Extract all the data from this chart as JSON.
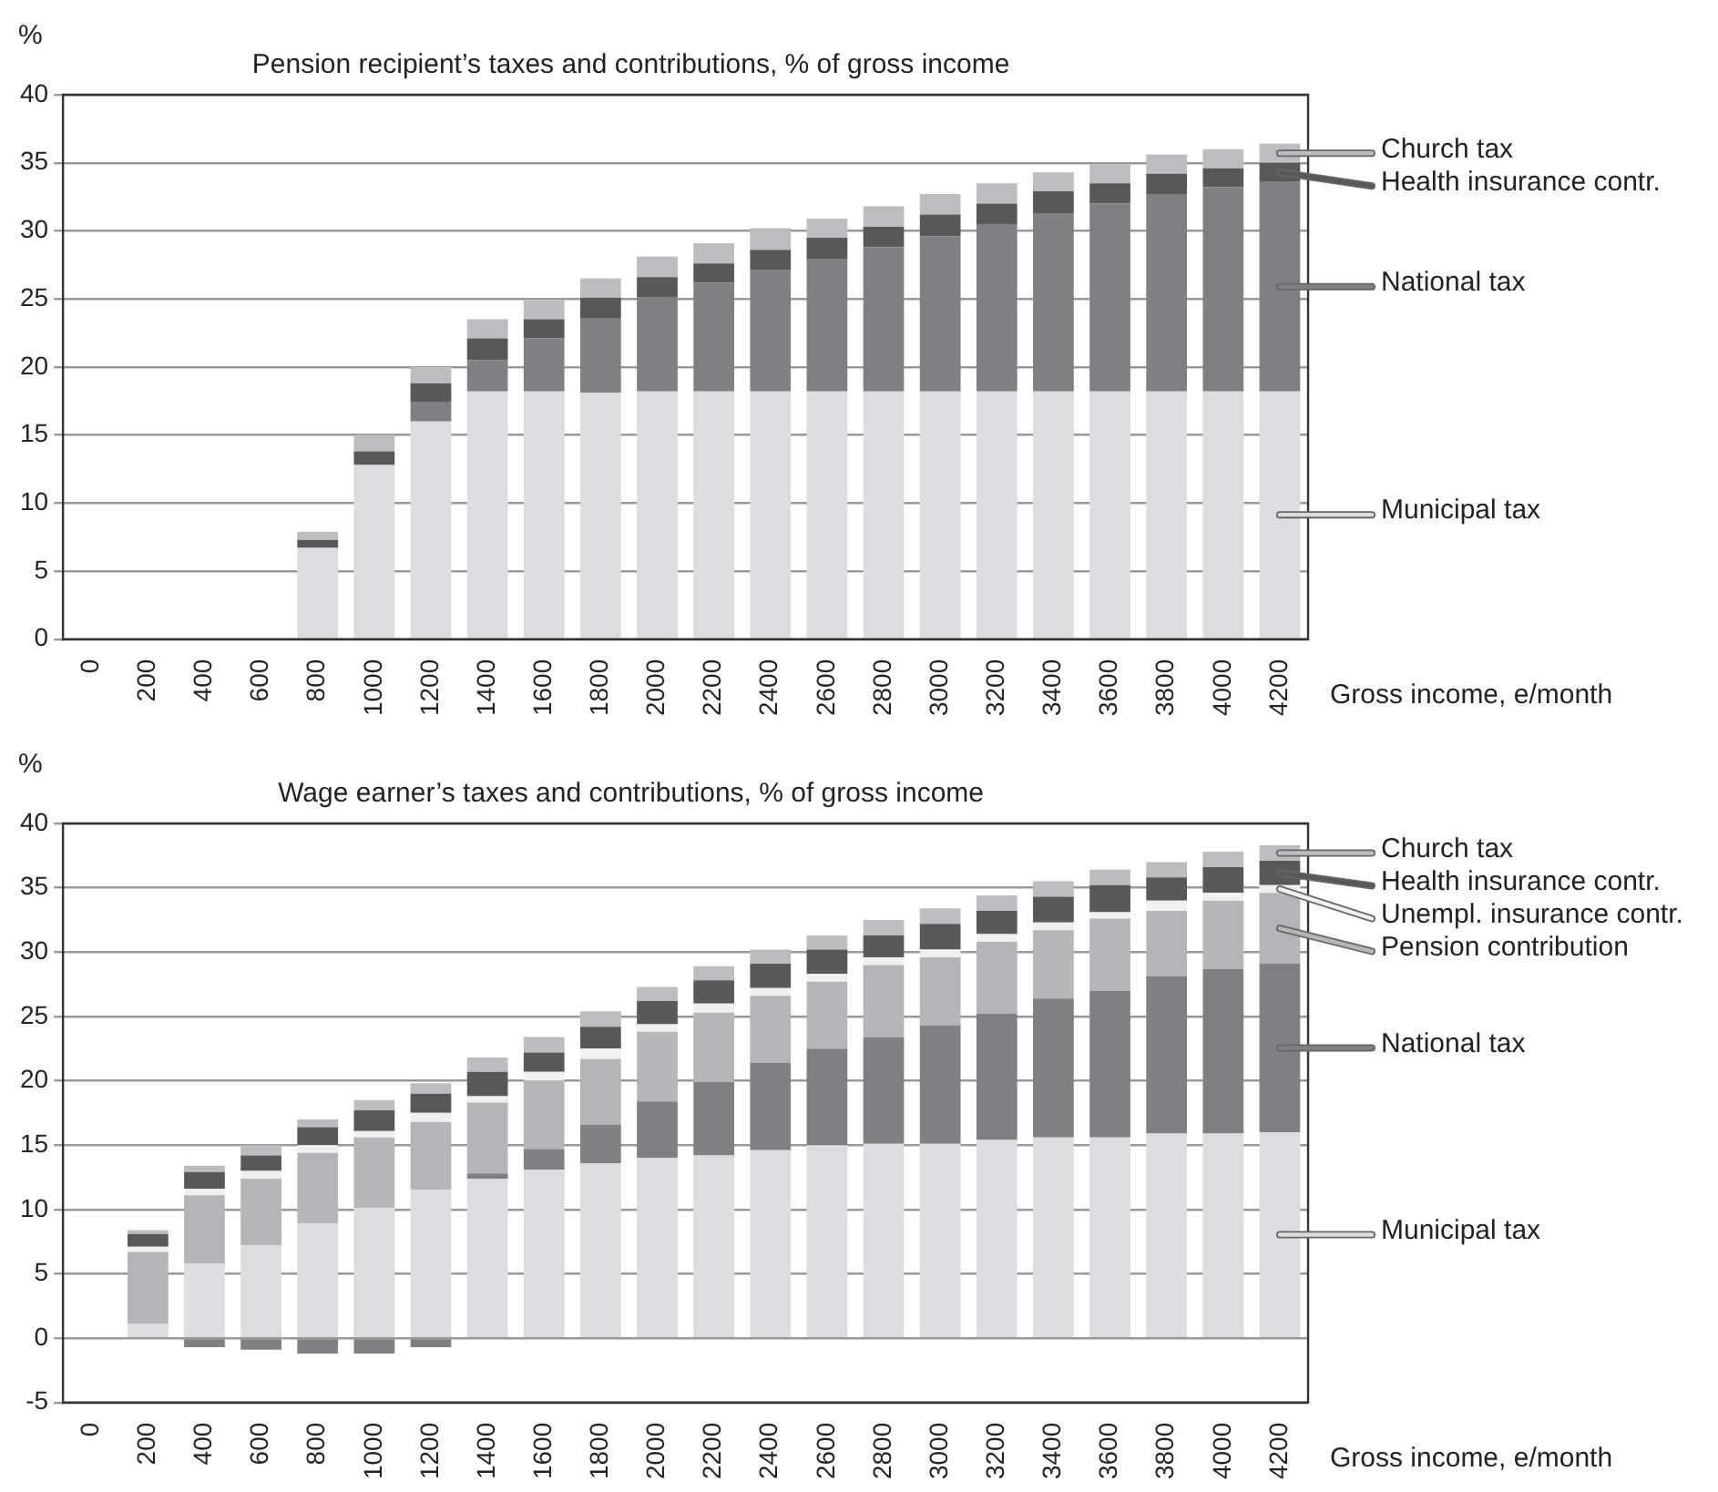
{
  "chart_data": [
    {
      "type": "bar",
      "title": "Pension recipient’s taxes and contributions, % of gross income",
      "ylabel": "%",
      "xlabel": "Gross income, e/month",
      "stacked": true,
      "grid": "y",
      "legend": "right",
      "categories": [
        "0",
        "200",
        "400",
        "600",
        "800",
        "1000",
        "1200",
        "1400",
        "1600",
        "1800",
        "2000",
        "2200",
        "2400",
        "2600",
        "2800",
        "3000",
        "3200",
        "3400",
        "3600",
        "3800",
        "4000",
        "4200"
      ],
      "ylim": [
        0,
        40
      ],
      "yticks": [
        0,
        5,
        10,
        15,
        20,
        25,
        30,
        35,
        40
      ],
      "series": [
        {
          "name": "Municipal tax",
          "color": "#dcdde0",
          "values": [
            null,
            0,
            0,
            0,
            6.7,
            12.8,
            16.0,
            18.2,
            18.2,
            18.1,
            18.2,
            18.2,
            18.2,
            18.2,
            18.2,
            18.2,
            18.2,
            18.2,
            18.2,
            18.2,
            18.2,
            18.2
          ]
        },
        {
          "name": "National tax",
          "color": "#808084",
          "values": [
            null,
            0,
            0,
            0,
            0,
            0,
            1.4,
            2.3,
            3.9,
            5.5,
            6.9,
            8.0,
            8.9,
            9.7,
            10.6,
            11.4,
            12.3,
            13.1,
            13.8,
            14.5,
            15.0,
            15.4
          ]
        },
        {
          "name": "Health insurance contr.",
          "color": "#57585a",
          "values": [
            null,
            0,
            0,
            0,
            0.6,
            1.0,
            1.4,
            1.6,
            1.4,
            1.5,
            1.5,
            1.4,
            1.5,
            1.6,
            1.5,
            1.6,
            1.5,
            1.6,
            1.5,
            1.5,
            1.4,
            1.4
          ]
        },
        {
          "name": "Church tax",
          "color": "#bcbdc0",
          "values": [
            null,
            0,
            0,
            0,
            0.6,
            1.2,
            1.2,
            1.4,
            1.4,
            1.4,
            1.5,
            1.5,
            1.6,
            1.4,
            1.5,
            1.5,
            1.5,
            1.4,
            1.4,
            1.4,
            1.4,
            1.4
          ]
        }
      ]
    },
    {
      "type": "bar",
      "title": "Wage earner’s taxes and contributions, % of gross income",
      "ylabel": "%",
      "xlabel": "Gross income, e/month",
      "stacked": true,
      "grid": "y",
      "legend": "right",
      "categories": [
        "0",
        "200",
        "400",
        "600",
        "800",
        "1000",
        "1200",
        "1400",
        "1600",
        "1800",
        "2000",
        "2200",
        "2400",
        "2600",
        "2800",
        "3000",
        "3200",
        "3400",
        "3600",
        "3800",
        "4000",
        "4200"
      ],
      "ylim": [
        -5,
        40
      ],
      "yticks": [
        -5,
        0,
        5,
        10,
        15,
        20,
        25,
        30,
        35,
        40
      ],
      "series": [
        {
          "name": "Municipal tax",
          "color": "#dcdde0",
          "values": [
            null,
            1.1,
            5.8,
            7.2,
            8.9,
            10.1,
            11.5,
            12.4,
            13.1,
            13.6,
            14.0,
            14.2,
            14.6,
            15.0,
            15.1,
            15.1,
            15.4,
            15.6,
            15.6,
            15.9,
            15.9,
            16.0
          ]
        },
        {
          "name": "National tax",
          "color": "#808084",
          "values": [
            null,
            0,
            -0.7,
            -0.9,
            -1.2,
            -1.2,
            -0.7,
            0.4,
            1.6,
            3.0,
            4.4,
            5.7,
            6.8,
            7.5,
            8.3,
            9.2,
            9.8,
            10.8,
            11.4,
            12.2,
            12.8,
            13.1
          ]
        },
        {
          "name": "Pension contribution",
          "color": "#b4b5b8",
          "values": [
            null,
            5.6,
            5.3,
            5.2,
            5.5,
            5.5,
            5.3,
            5.5,
            5.3,
            5.1,
            5.4,
            5.4,
            5.2,
            5.2,
            5.6,
            5.3,
            5.6,
            5.3,
            5.6,
            5.1,
            5.3,
            5.5
          ]
        },
        {
          "name": "Unempl. insurance contr.",
          "color": "#f0f0f0",
          "values": [
            null,
            0.4,
            0.5,
            0.6,
            0.6,
            0.5,
            0.7,
            0.5,
            0.7,
            0.8,
            0.6,
            0.7,
            0.6,
            0.6,
            0.6,
            0.6,
            0.6,
            0.6,
            0.5,
            0.8,
            0.6,
            0.6
          ]
        },
        {
          "name": "Health insurance contr.",
          "color": "#57585a",
          "values": [
            null,
            1.0,
            1.3,
            1.2,
            1.4,
            1.6,
            1.5,
            1.9,
            1.5,
            1.7,
            1.8,
            1.8,
            1.9,
            1.9,
            1.7,
            2.0,
            1.8,
            2.0,
            2.1,
            1.8,
            2.0,
            1.9
          ]
        },
        {
          "name": "Church tax",
          "color": "#bcbdc0",
          "values": [
            null,
            0.3,
            0.5,
            0.8,
            0.6,
            0.8,
            0.8,
            1.1,
            1.2,
            1.2,
            1.1,
            1.1,
            1.1,
            1.1,
            1.2,
            1.2,
            1.2,
            1.2,
            1.2,
            1.2,
            1.2,
            1.2
          ]
        }
      ]
    }
  ]
}
